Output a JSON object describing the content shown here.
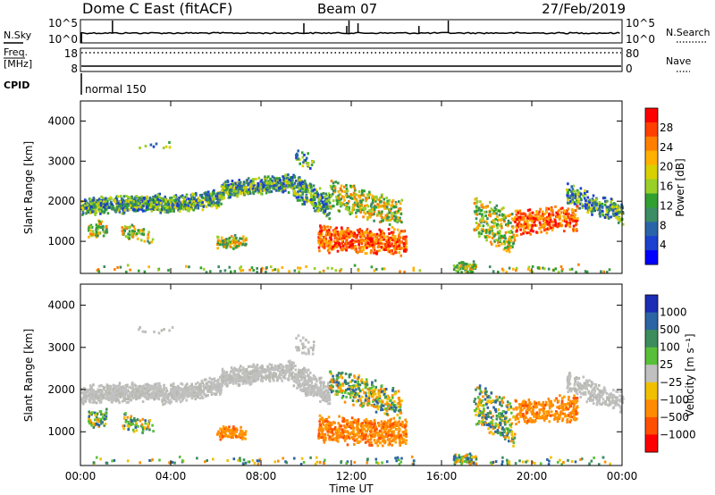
{
  "header": {
    "title": "Dome C East (fitACF)",
    "beam": "Beam 07",
    "date": "27/Feb/2019"
  },
  "panels": {
    "nsky_label": "N.Sky",
    "nsearch_label": "N.Search",
    "freq_label_1": "Freq.",
    "freq_label_2": "[MHz]",
    "nave_label": "Nave",
    "cpid_label": "CPID",
    "cpid_value": "normal 150",
    "top_left_ticks": [
      "10^5",
      "10^0"
    ],
    "top_right_ticks": [
      "10^5",
      "10^0"
    ],
    "freq_left_ticks": [
      "18",
      "8"
    ],
    "freq_right_ticks": [
      "80",
      "0"
    ]
  },
  "chart_data": [
    {
      "type": "heatmap",
      "ylabel": "Slant Range [km]",
      "y_ticks": [
        "4000",
        "3000",
        "2000",
        "1000"
      ],
      "y_tick_values": [
        4000,
        3000,
        2000,
        1000
      ],
      "ylim": [
        200,
        4500
      ],
      "xlim": [
        0,
        24
      ],
      "colorbar_label": "Power [dB]",
      "colorbar_ticks": [
        "28",
        "24",
        "20",
        "16",
        "12",
        "8",
        "4"
      ],
      "colorbar_colors": [
        "#ff0000",
        "#ff4000",
        "#ff8000",
        "#ffb000",
        "#d8d000",
        "#98d028",
        "#30a030",
        "#3c8c64",
        "#2a64a8",
        "#1c40d0",
        "#0000ff"
      ]
    },
    {
      "type": "heatmap",
      "ylabel": "Slant Range [km]",
      "y_ticks": [
        "4000",
        "3000",
        "2000",
        "1000"
      ],
      "y_tick_values": [
        4000,
        3000,
        2000,
        1000
      ],
      "ylim": [
        200,
        4500
      ],
      "xlim": [
        0,
        24
      ],
      "colorbar_label": "Velocity [m s⁻¹]",
      "colorbar_ticks": [
        "1000",
        "500",
        "100",
        "25",
        "−25",
        "−100",
        "−500",
        "−1000"
      ],
      "colorbar_colors": [
        "#1c2cb4",
        "#2c64a4",
        "#3c8c5c",
        "#58c038",
        "#c0c0c0",
        "#f0c000",
        "#ff8c00",
        "#ff5000",
        "#ff0000"
      ]
    }
  ],
  "x_axis": {
    "xlabel": "Time UT",
    "ticks": [
      "00:00",
      "04:00",
      "08:00",
      "12:00",
      "16:00",
      "20:00",
      "00:00"
    ],
    "tick_hours": [
      0,
      4,
      8,
      12,
      16,
      20,
      24
    ]
  }
}
